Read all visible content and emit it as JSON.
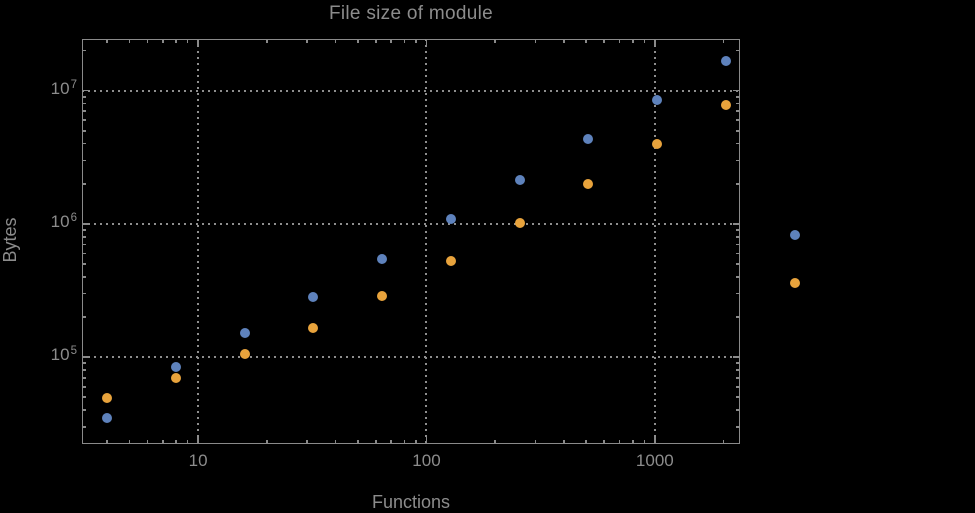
{
  "colors": {
    "background": "#000000",
    "frame": "#8A8A8A",
    "grid": "#8E8E8E",
    "text": "#8C8C8C",
    "series_blue": "#5E82BC",
    "series_orange": "#E8A33C"
  },
  "chart_data": {
    "type": "scatter",
    "title": "File size of module",
    "xlabel": "Functions",
    "ylabel": "Bytes",
    "x_scale": "log",
    "y_scale": "log",
    "grid": "dotted",
    "legend": "none",
    "x": [
      4,
      8,
      16,
      32,
      64,
      128,
      256,
      512,
      1024,
      2048,
      4096
    ],
    "series": [
      {
        "name": "blue-series",
        "color": "#5E82BC",
        "values": [
          35000,
          84000,
          152000,
          283000,
          542000,
          1080000,
          2140000,
          4310000,
          8460000,
          16700000,
          830000
        ]
      },
      {
        "name": "orange-series",
        "color": "#E8A33C",
        "values": [
          49500,
          70000,
          106000,
          166000,
          286000,
          530000,
          1020000,
          1980000,
          3960000,
          7860000,
          359000
        ]
      }
    ],
    "x_ticks": {
      "major": [
        10,
        100,
        1000
      ],
      "labels": [
        "10",
        "100",
        "1000"
      ]
    },
    "y_ticks": {
      "major": [
        100000,
        1000000,
        10000000
      ],
      "labels": [
        {
          "base": "10",
          "exp": "5"
        },
        {
          "base": "10",
          "exp": "6"
        },
        {
          "base": "10",
          "exp": "7"
        }
      ]
    },
    "xlim": [
      3.1,
      2360
    ],
    "ylim": [
      22300,
      24400000
    ]
  }
}
